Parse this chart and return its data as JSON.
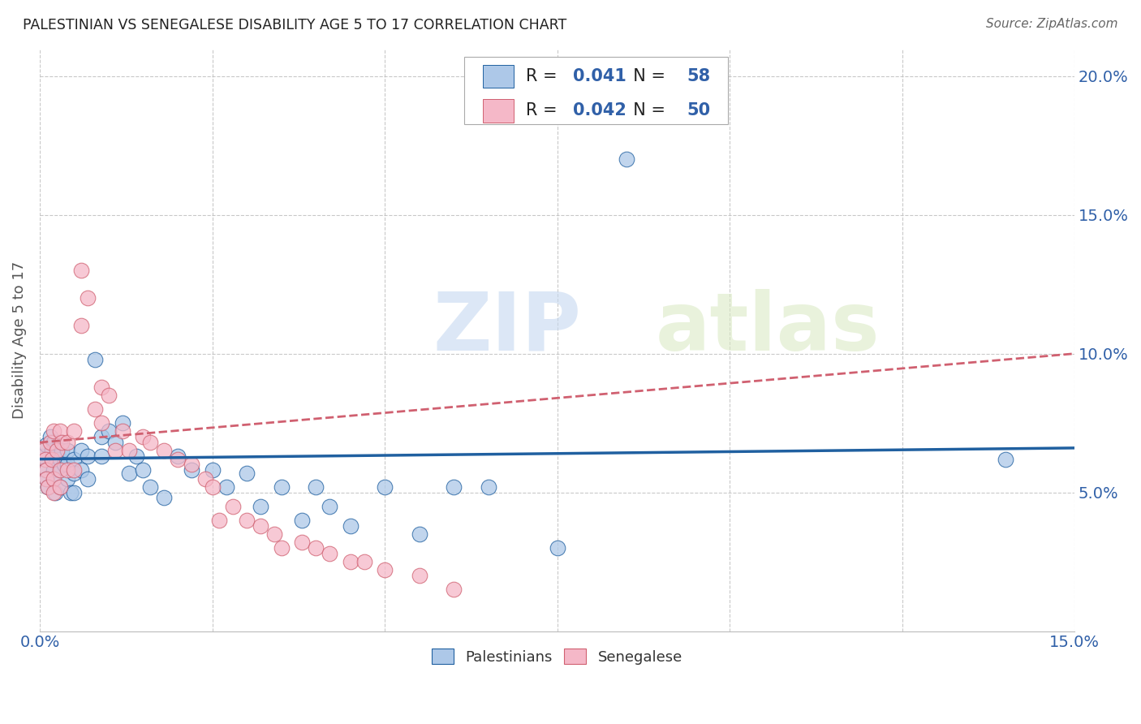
{
  "title": "PALESTINIAN VS SENEGALESE DISABILITY AGE 5 TO 17 CORRELATION CHART",
  "source": "Source: ZipAtlas.com",
  "ylabel": "Disability Age 5 to 17",
  "xlim": [
    0.0,
    0.15
  ],
  "ylim": [
    0.0,
    0.21
  ],
  "xticks": [
    0.0,
    0.025,
    0.05,
    0.075,
    0.1,
    0.125,
    0.15
  ],
  "xticklabels": [
    "0.0%",
    "",
    "",
    "",
    "",
    "",
    "15.0%"
  ],
  "yticks_right": [
    0.05,
    0.1,
    0.15,
    0.2
  ],
  "yticklabels_right": [
    "5.0%",
    "10.0%",
    "15.0%",
    "20.0%"
  ],
  "palestinians_R": "0.041",
  "palestinians_N": "58",
  "senegalese_R": "0.042",
  "senegalese_N": "50",
  "palestinians_color": "#adc8e8",
  "senegalese_color": "#f5b8c8",
  "palestinians_line_color": "#2060a0",
  "senegalese_line_color": "#d06070",
  "watermark_zip": "ZIP",
  "watermark_atlas": "atlas",
  "palestinians_x": [
    0.0005,
    0.0008,
    0.001,
    0.001,
    0.0012,
    0.0015,
    0.0018,
    0.002,
    0.002,
    0.002,
    0.0022,
    0.0025,
    0.003,
    0.003,
    0.003,
    0.003,
    0.0032,
    0.0035,
    0.004,
    0.004,
    0.004,
    0.0045,
    0.005,
    0.005,
    0.005,
    0.006,
    0.006,
    0.007,
    0.007,
    0.008,
    0.009,
    0.009,
    0.01,
    0.011,
    0.012,
    0.013,
    0.014,
    0.015,
    0.016,
    0.018,
    0.02,
    0.022,
    0.025,
    0.027,
    0.03,
    0.032,
    0.035,
    0.038,
    0.04,
    0.042,
    0.045,
    0.05,
    0.055,
    0.06,
    0.065,
    0.075,
    0.085,
    0.14
  ],
  "palestinians_y": [
    0.063,
    0.058,
    0.067,
    0.055,
    0.052,
    0.07,
    0.065,
    0.068,
    0.058,
    0.055,
    0.05,
    0.062,
    0.068,
    0.062,
    0.058,
    0.052,
    0.065,
    0.06,
    0.065,
    0.06,
    0.055,
    0.05,
    0.062,
    0.057,
    0.05,
    0.065,
    0.058,
    0.063,
    0.055,
    0.098,
    0.07,
    0.063,
    0.072,
    0.068,
    0.075,
    0.057,
    0.063,
    0.058,
    0.052,
    0.048,
    0.063,
    0.058,
    0.058,
    0.052,
    0.057,
    0.045,
    0.052,
    0.04,
    0.052,
    0.045,
    0.038,
    0.052,
    0.035,
    0.052,
    0.052,
    0.03,
    0.17,
    0.062
  ],
  "senegalese_x": [
    0.0005,
    0.0008,
    0.001,
    0.001,
    0.0012,
    0.0015,
    0.0018,
    0.002,
    0.002,
    0.002,
    0.0025,
    0.003,
    0.003,
    0.003,
    0.0032,
    0.004,
    0.004,
    0.005,
    0.005,
    0.006,
    0.006,
    0.007,
    0.008,
    0.009,
    0.009,
    0.01,
    0.011,
    0.012,
    0.013,
    0.015,
    0.016,
    0.018,
    0.02,
    0.022,
    0.024,
    0.025,
    0.026,
    0.028,
    0.03,
    0.032,
    0.034,
    0.035,
    0.038,
    0.04,
    0.042,
    0.045,
    0.047,
    0.05,
    0.055,
    0.06
  ],
  "senegalese_y": [
    0.065,
    0.062,
    0.058,
    0.055,
    0.052,
    0.068,
    0.062,
    0.055,
    0.05,
    0.072,
    0.065,
    0.072,
    0.058,
    0.052,
    0.068,
    0.068,
    0.058,
    0.072,
    0.058,
    0.13,
    0.11,
    0.12,
    0.08,
    0.088,
    0.075,
    0.085,
    0.065,
    0.072,
    0.065,
    0.07,
    0.068,
    0.065,
    0.062,
    0.06,
    0.055,
    0.052,
    0.04,
    0.045,
    0.04,
    0.038,
    0.035,
    0.03,
    0.032,
    0.03,
    0.028,
    0.025,
    0.025,
    0.022,
    0.02,
    0.015
  ]
}
